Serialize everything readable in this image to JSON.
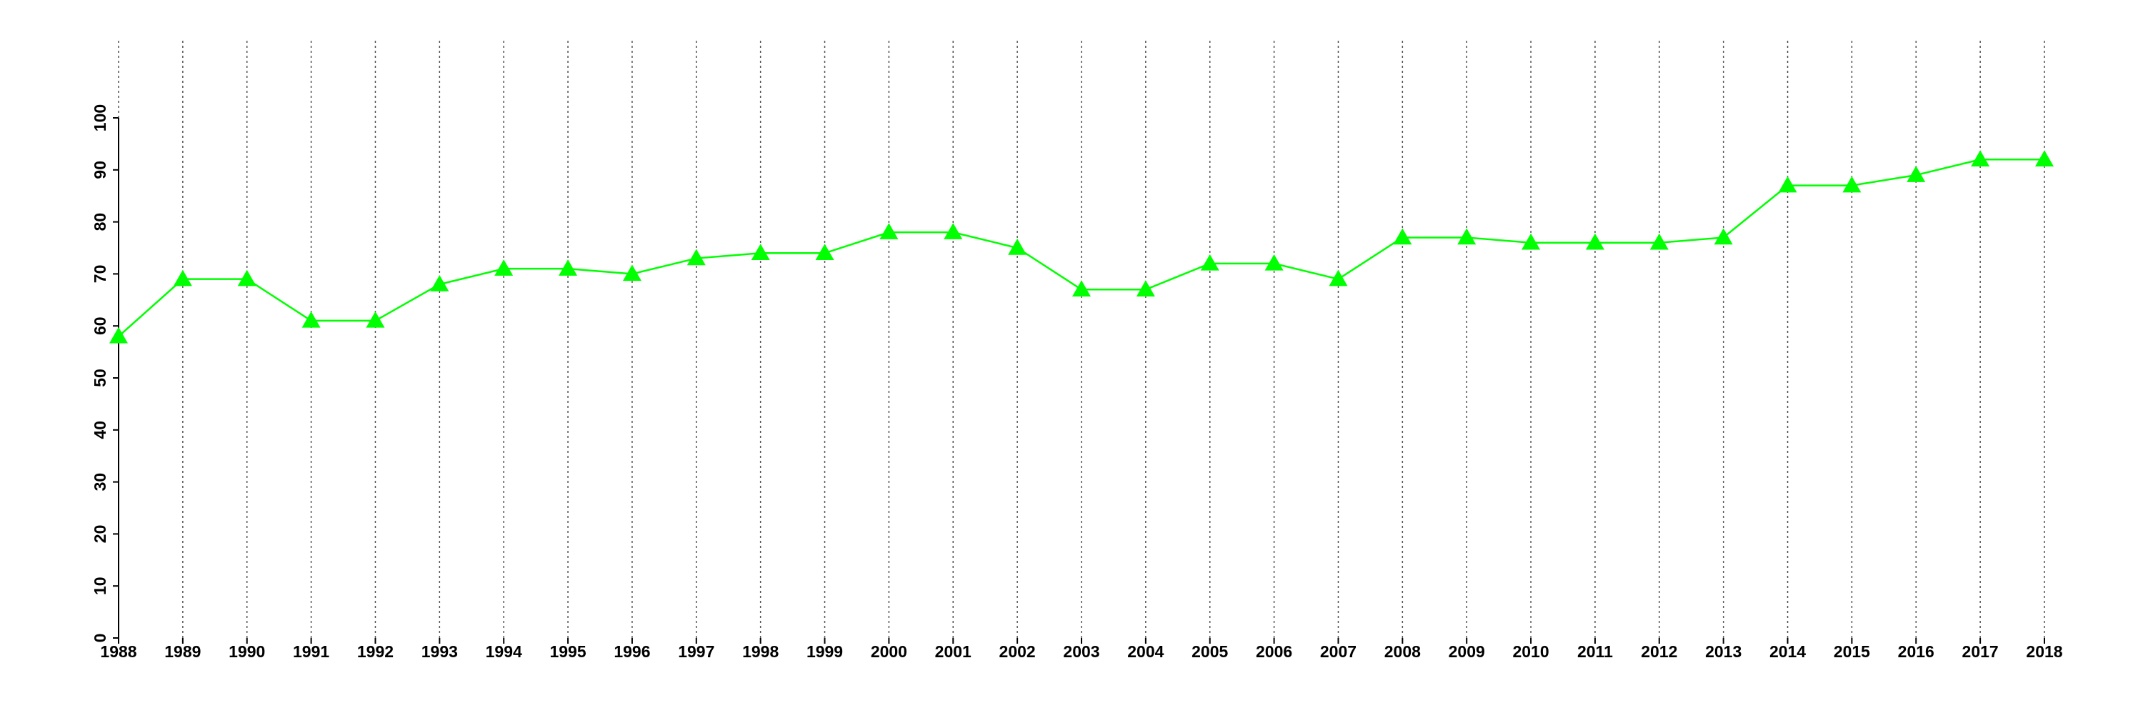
{
  "chart_data": {
    "type": "line",
    "x": [
      1988,
      1989,
      1990,
      1991,
      1992,
      1993,
      1994,
      1995,
      1996,
      1997,
      1998,
      1999,
      2000,
      2001,
      2002,
      2003,
      2004,
      2005,
      2006,
      2007,
      2008,
      2009,
      2010,
      2011,
      2012,
      2013,
      2014,
      2015,
      2016,
      2017,
      2018
    ],
    "series": [
      {
        "color": "#00ff00",
        "marker": "triangle",
        "values": [
          58,
          69,
          69,
          61,
          61,
          68,
          71,
          71,
          70,
          73,
          74,
          74,
          78,
          78,
          75,
          67,
          67,
          72,
          72,
          69,
          77,
          77,
          76,
          76,
          76,
          77,
          87,
          87,
          89,
          92,
          92
        ]
      }
    ],
    "xlim": [
      1988,
      2018
    ],
    "xticks": [
      1988,
      1989,
      1990,
      1991,
      1992,
      1993,
      1994,
      1995,
      1996,
      1997,
      1998,
      1999,
      2000,
      2001,
      2002,
      2003,
      2004,
      2005,
      2006,
      2007,
      2008,
      2009,
      2010,
      2011,
      2012,
      2013,
      2014,
      2015,
      2016,
      2017,
      2018
    ],
    "ylim": [
      0,
      100
    ],
    "yticks": [
      0,
      10,
      20,
      30,
      40,
      50,
      60,
      70,
      80,
      90,
      100
    ],
    "grid": "x"
  }
}
